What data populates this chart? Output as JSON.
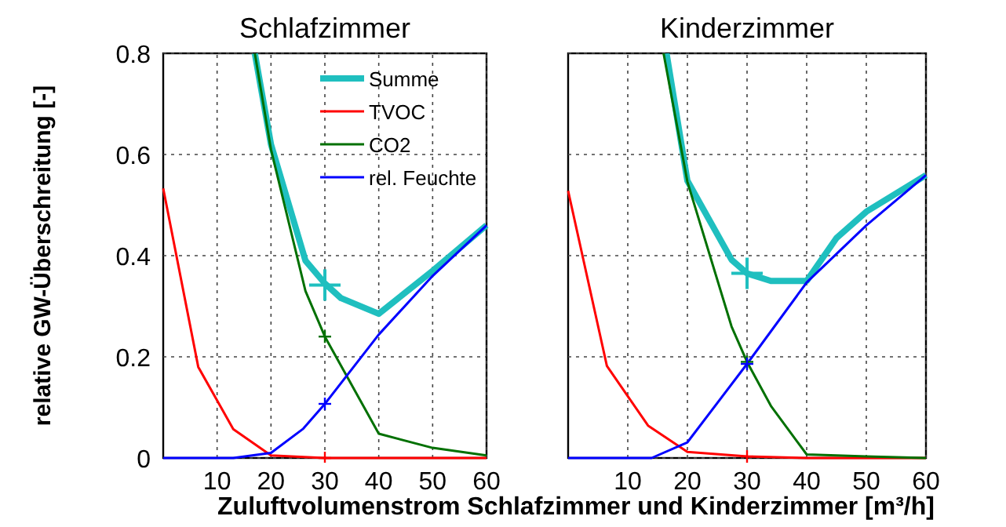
{
  "chart_data": [
    {
      "type": "line",
      "title": "Schlafzimmer",
      "xlabel": "Zuluftvolumenstrom Schlafzimmer und Kinderzimmer  [m³/h]",
      "ylabel": "relative GW-Überschreitung [-]",
      "xlim": [
        0,
        60
      ],
      "xticks": [
        10,
        20,
        30,
        40,
        50,
        60
      ],
      "ylim": [
        0,
        0.8
      ],
      "yticks": [
        0,
        0.2,
        0.4,
        0.6,
        0.8
      ],
      "grid": true,
      "legend": "top right",
      "line_style": "solid",
      "series": [
        {
          "name": "Summe",
          "color": "#1fbfbf",
          "x": [
            17,
            20,
            26.4,
            30,
            33,
            40,
            50,
            60
          ],
          "values": [
            0.8,
            0.62,
            0.39,
            0.345,
            0.316,
            0.285,
            0.37,
            0.46
          ]
        },
        {
          "name": "TVOC",
          "color": "#ff0000",
          "x": [
            0,
            6.5,
            13,
            20,
            30,
            40,
            50,
            60
          ],
          "values": [
            0.533,
            0.18,
            0.057,
            0.005,
            0,
            0,
            0,
            0
          ]
        },
        {
          "name": "CO2",
          "color": "#007000",
          "x": [
            17,
            20,
            26.4,
            30,
            40,
            50,
            60
          ],
          "values": [
            0.8,
            0.61,
            0.33,
            0.24,
            0.048,
            0.02,
            0.005
          ]
        },
        {
          "name": "rel. Feuchte",
          "color": "#0000ff",
          "x": [
            0,
            13,
            20,
            26,
            30,
            40,
            50,
            60
          ],
          "values": [
            0,
            0,
            0.01,
            0.058,
            0.107,
            0.244,
            0.36,
            0.46
          ]
        },
        {
          "type": "scatter",
          "marker": "cross",
          "color": "#1fbfbf",
          "x": [
            30
          ],
          "values": [
            0.342
          ]
        },
        {
          "type": "scatter",
          "marker": "cross",
          "color": "#007000",
          "x": [
            30
          ],
          "values": [
            0.24
          ]
        },
        {
          "type": "scatter",
          "marker": "cross",
          "color": "#0000ff",
          "x": [
            30
          ],
          "values": [
            0.107
          ]
        },
        {
          "type": "scatter",
          "marker": "cross",
          "color": "#ff0000",
          "x": [
            30
          ],
          "values": [
            0
          ]
        }
      ]
    },
    {
      "type": "line",
      "title": "Kinderzimmer",
      "xlim": [
        0,
        60
      ],
      "xticks": [
        10,
        20,
        30,
        40,
        50,
        60
      ],
      "ylim": [
        0,
        0.8
      ],
      "yticks": [
        0,
        0.2,
        0.4,
        0.6,
        0.8
      ],
      "tick_labels": "x",
      "grid": true,
      "line_style": "solid",
      "series": [
        {
          "color": "#1fbfbf",
          "x": [
            16.5,
            20,
            27.4,
            30,
            34,
            40,
            45,
            50,
            60
          ],
          "values": [
            0.8,
            0.548,
            0.392,
            0.365,
            0.35,
            0.35,
            0.435,
            0.487,
            0.559
          ]
        },
        {
          "color": "#ff0000",
          "x": [
            0,
            6.5,
            13.4,
            20,
            30,
            40,
            50,
            60
          ],
          "values": [
            0.528,
            0.182,
            0.064,
            0.012,
            0.003,
            0,
            0,
            0
          ]
        },
        {
          "color": "#007000",
          "x": [
            16,
            20,
            27.4,
            30,
            34,
            40,
            50,
            60
          ],
          "values": [
            0.8,
            0.546,
            0.26,
            0.19,
            0.103,
            0.007,
            0.003,
            0
          ]
        },
        {
          "color": "#0000ff",
          "x": [
            0,
            14,
            20,
            30,
            40,
            50,
            60
          ],
          "values": [
            0,
            0,
            0.031,
            0.186,
            0.347,
            0.46,
            0.559
          ]
        },
        {
          "type": "scatter",
          "marker": "cross",
          "color": "#1fbfbf",
          "x": [
            30
          ],
          "values": [
            0.365
          ]
        },
        {
          "type": "scatter",
          "marker": "cross",
          "color": "#007000",
          "x": [
            30
          ],
          "values": [
            0.19
          ]
        },
        {
          "type": "scatter",
          "marker": "cross",
          "color": "#0000ff",
          "x": [
            30
          ],
          "values": [
            0.186
          ]
        },
        {
          "type": "scatter",
          "marker": "cross",
          "color": "#ff0000",
          "x": [
            30
          ],
          "values": [
            0.003
          ]
        }
      ]
    }
  ]
}
